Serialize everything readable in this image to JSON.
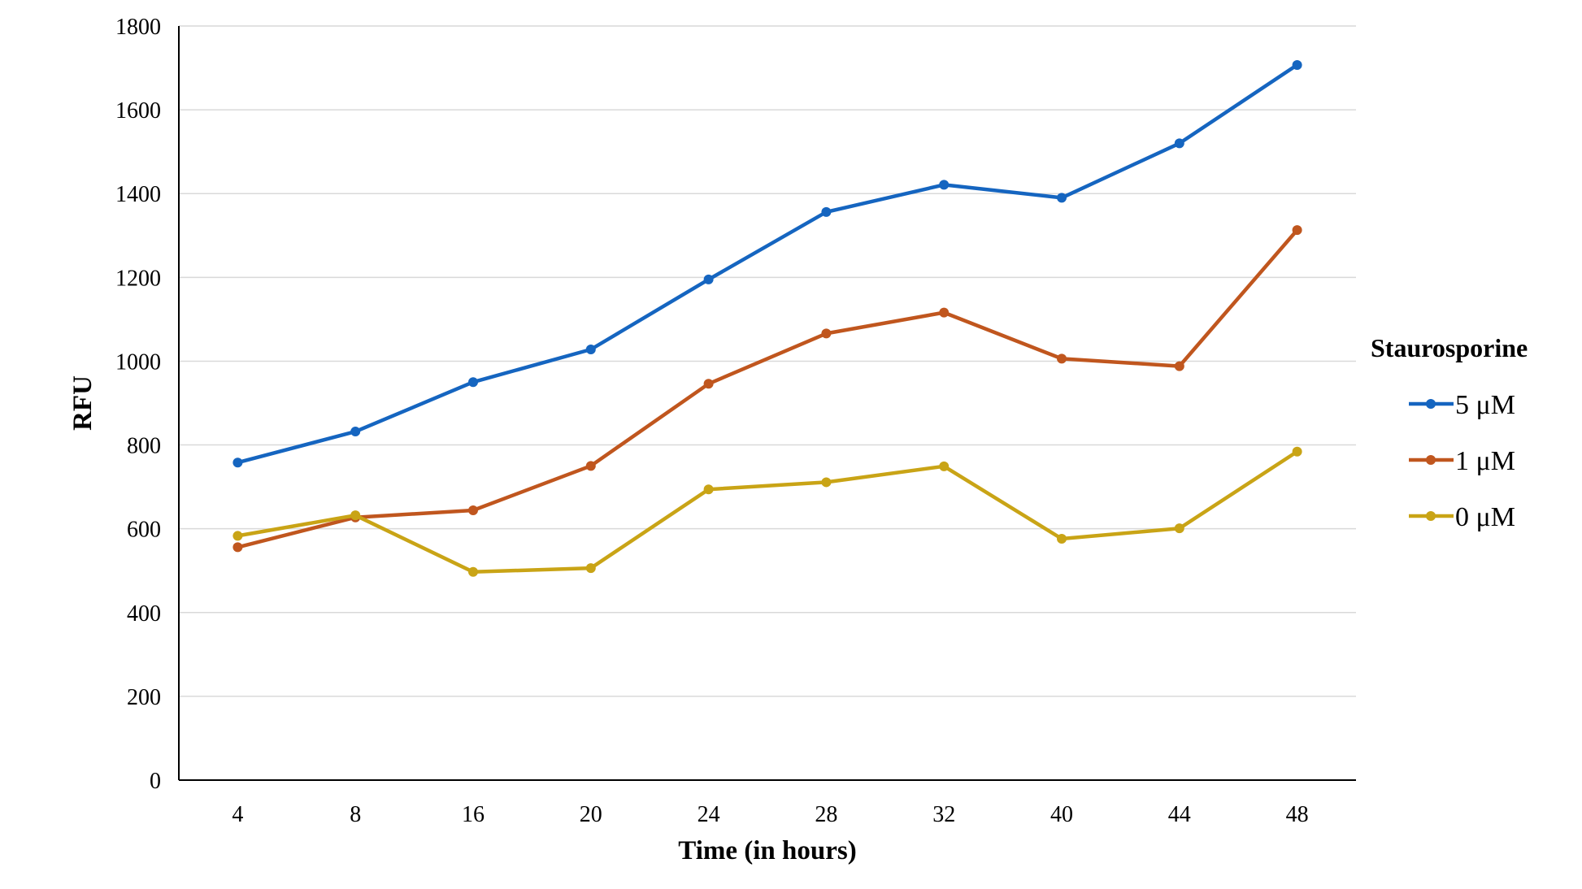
{
  "chart_data": {
    "type": "line",
    "title": "",
    "xlabel": "Time (in hours)",
    "ylabel": "RFU",
    "categories": [
      "4",
      "8",
      "16",
      "20",
      "24",
      "28",
      "32",
      "40",
      "44",
      "48"
    ],
    "ylim": [
      0,
      1800
    ],
    "yticks": [
      0,
      200,
      400,
      600,
      800,
      1000,
      1200,
      1400,
      1600,
      1800
    ],
    "grid": true,
    "legend": {
      "title": "Staurosporine",
      "placement": "right"
    },
    "series": [
      {
        "name": "5 μM",
        "color": "#1565c0",
        "values": [
          758,
          832,
          950,
          1028,
          1195,
          1356,
          1421,
          1390,
          1520,
          1707
        ]
      },
      {
        "name": "1 μM",
        "color": "#c0561e",
        "values": [
          556,
          627,
          644,
          750,
          946,
          1066,
          1116,
          1006,
          988,
          1313
        ]
      },
      {
        "name": "0 μM",
        "color": "#c9a416",
        "values": [
          583,
          632,
          497,
          506,
          694,
          711,
          749,
          576,
          601,
          784
        ]
      }
    ]
  }
}
